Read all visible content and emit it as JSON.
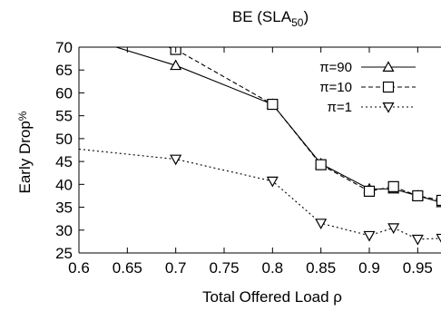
{
  "chart_data": {
    "type": "line",
    "title": "BE (SLA",
    "title_subscript": "50",
    "title_suffix": ")",
    "xlabel": "Total Offered Load ρ",
    "ylabel": "Early Drop",
    "ylabel_subscript": "%",
    "xlim": [
      0.6,
      0.975
    ],
    "ylim": [
      25,
      70
    ],
    "xticks": [
      "0.6",
      "0.65",
      "0.7",
      "0.75",
      "0.8",
      "0.85",
      "0.9",
      "0.95"
    ],
    "xtick_values": [
      0.6,
      0.65,
      0.7,
      0.75,
      0.8,
      0.85,
      0.9,
      0.95
    ],
    "yticks": [
      "25",
      "30",
      "35",
      "40",
      "45",
      "50",
      "55",
      "60",
      "65",
      "70"
    ],
    "ytick_values": [
      25,
      30,
      35,
      40,
      45,
      50,
      55,
      60,
      65,
      70
    ],
    "grid": false,
    "legend_position": "top-right",
    "series": [
      {
        "name": "π=90",
        "marker": "triangle-up",
        "line": "solid",
        "marked_indices": [
          1,
          2,
          3,
          4,
          5,
          6,
          7
        ],
        "x": [
          0.6,
          0.7,
          0.8,
          0.85,
          0.9,
          0.925,
          0.95,
          0.975
        ],
        "y": [
          72.5,
          66.0,
          57.5,
          44.5,
          39.0,
          39.0,
          37.5,
          36.0
        ]
      },
      {
        "name": "π=10",
        "marker": "square",
        "line": "dashed",
        "marked_indices": [
          1,
          2,
          3,
          4,
          5,
          6,
          7
        ],
        "x": [
          0.6,
          0.7,
          0.8,
          0.85,
          0.9,
          0.925,
          0.95,
          0.975
        ],
        "y": [
          76.0,
          69.5,
          57.5,
          44.3,
          38.5,
          39.5,
          37.5,
          36.5
        ]
      },
      {
        "name": "π=1",
        "marker": "triangle-down",
        "line": "dotted",
        "marked_indices": [
          1,
          2,
          3,
          4,
          5,
          6,
          7
        ],
        "x": [
          0.6,
          0.7,
          0.8,
          0.85,
          0.9,
          0.925,
          0.95,
          0.975
        ],
        "y": [
          47.7,
          45.5,
          40.7,
          31.5,
          28.8,
          30.5,
          28.0,
          28.2
        ]
      }
    ]
  }
}
